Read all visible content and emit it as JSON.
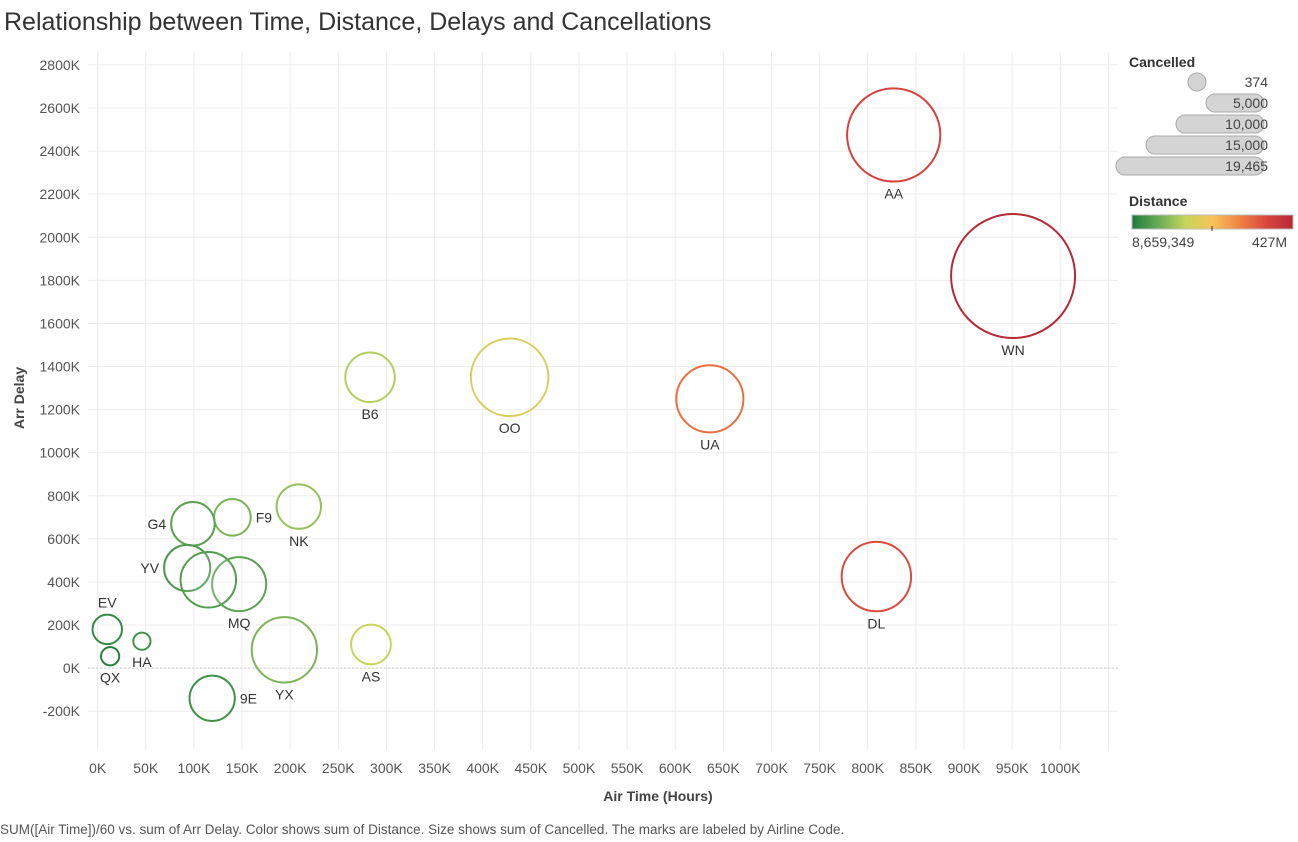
{
  "title": "Relationship between Time, Distance, Delays and Cancellations",
  "caption": "SUM([Air Time])/60 vs. sum of Arr Delay.  Color shows sum of Distance.  Size shows sum of Cancelled.  The marks are labeled by Airline Code.",
  "chart_data": {
    "type": "scatter",
    "xlabel": "Air Time (Hours)",
    "ylabel": "Arr Delay",
    "xlim": [
      -10000,
      1060000
    ],
    "ylim": [
      -380000,
      2860000
    ],
    "x_ticks": [
      0,
      50000,
      100000,
      150000,
      200000,
      250000,
      300000,
      350000,
      400000,
      450000,
      500000,
      550000,
      600000,
      650000,
      700000,
      750000,
      800000,
      850000,
      900000,
      950000,
      1000000
    ],
    "x_tick_labels": [
      "0K",
      "50K",
      "100K",
      "150K",
      "200K",
      "250K",
      "300K",
      "350K",
      "400K",
      "450K",
      "500K",
      "550K",
      "600K",
      "650K",
      "700K",
      "750K",
      "800K",
      "850K",
      "900K",
      "950K",
      "1000K"
    ],
    "y_ticks": [
      -200000,
      0,
      200000,
      400000,
      600000,
      800000,
      1000000,
      1200000,
      1400000,
      1600000,
      1800000,
      2000000,
      2200000,
      2400000,
      2600000,
      2800000
    ],
    "y_tick_labels": [
      "-200K",
      "0K",
      "200K",
      "400K",
      "600K",
      "800K",
      "1000K",
      "1200K",
      "1400K",
      "1600K",
      "1800K",
      "2000K",
      "2200K",
      "2400K",
      "2600K",
      "2800K"
    ],
    "grid": true,
    "size_legend": {
      "title": "Cancelled",
      "values": [
        374,
        5000,
        10000,
        15000,
        19465
      ],
      "labels": [
        "374",
        "5,000",
        "10,000",
        "15,000",
        "19,465"
      ]
    },
    "color_legend": {
      "title": "Distance",
      "min_label": "8,659,349",
      "max_label": "427M",
      "colors": [
        "#1f7a3c",
        "#6aac58",
        "#c5d65c",
        "#f7c35a",
        "#ef8443",
        "#d94740",
        "#b82835"
      ]
    },
    "points": [
      {
        "code": "AA",
        "x": 827000,
        "y": 2475000,
        "cancelled": 11000,
        "distance_t": 0.86,
        "label_pos": "bottom"
      },
      {
        "code": "WN",
        "x": 951000,
        "y": 1820000,
        "cancelled": 19465,
        "distance_t": 1.0,
        "label_pos": "bottom"
      },
      {
        "code": "UA",
        "x": 636000,
        "y": 1250000,
        "cancelled": 5700,
        "distance_t": 0.72,
        "label_pos": "bottom"
      },
      {
        "code": "OO",
        "x": 428000,
        "y": 1350000,
        "cancelled": 7600,
        "distance_t": 0.4,
        "label_pos": "bottom"
      },
      {
        "code": "B6",
        "x": 283000,
        "y": 1350000,
        "cancelled": 3100,
        "distance_t": 0.3,
        "label_pos": "bottom"
      },
      {
        "code": "DL",
        "x": 809000,
        "y": 425000,
        "cancelled": 6100,
        "distance_t": 0.82,
        "label_pos": "bottom"
      },
      {
        "code": "NK",
        "x": 209000,
        "y": 750000,
        "cancelled": 2500,
        "distance_t": 0.25,
        "label_pos": "bottom"
      },
      {
        "code": "F9",
        "x": 140000,
        "y": 700000,
        "cancelled": 1700,
        "distance_t": 0.2,
        "label_pos": "right"
      },
      {
        "code": "G4",
        "x": 99000,
        "y": 670000,
        "cancelled": 2400,
        "distance_t": 0.13,
        "label_pos": "left"
      },
      {
        "code": "YV",
        "x": 93000,
        "y": 465000,
        "cancelled": 2700,
        "distance_t": 0.1,
        "label_pos": "left"
      },
      {
        "code": "MQ",
        "x": 147000,
        "y": 390000,
        "cancelled": 3700,
        "distance_t": 0.14,
        "label_pos": "bottom"
      },
      {
        "code": "",
        "x": 115000,
        "y": 410000,
        "cancelled": 3900,
        "distance_t": 0.12,
        "label_pos": "none"
      },
      {
        "code": "EV",
        "x": 10000,
        "y": 180000,
        "cancelled": 1100,
        "distance_t": 0.05,
        "label_pos": "top"
      },
      {
        "code": "HA",
        "x": 46000,
        "y": 125000,
        "cancelled": 374,
        "distance_t": 0.08,
        "label_pos": "bottom"
      },
      {
        "code": "QX",
        "x": 13000,
        "y": 55000,
        "cancelled": 420,
        "distance_t": 0.02,
        "label_pos": "bottom"
      },
      {
        "code": "YX",
        "x": 194000,
        "y": 85000,
        "cancelled": 5400,
        "distance_t": 0.2,
        "label_pos": "bottom"
      },
      {
        "code": "AS",
        "x": 284000,
        "y": 110000,
        "cancelled": 2000,
        "distance_t": 0.34,
        "label_pos": "bottom"
      },
      {
        "code": "9E",
        "x": 119000,
        "y": -140000,
        "cancelled": 2600,
        "distance_t": 0.08,
        "label_pos": "right"
      }
    ]
  }
}
